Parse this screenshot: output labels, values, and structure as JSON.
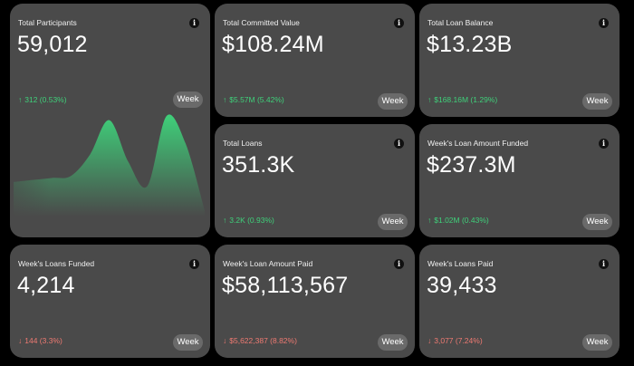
{
  "colors": {
    "background": "#000000",
    "card": "#4a4a4a",
    "up": "#3fd07a",
    "down": "#ef7a72",
    "button": "#6a6a6a"
  },
  "cards": [
    {
      "title": "Total Participants",
      "value": "59,012",
      "delta": "312 (0.53%)",
      "direction": "up",
      "arrow": "↑",
      "period": "Week",
      "info_icon": "i"
    },
    {
      "title": "Total Committed Value",
      "value": "$108.24M",
      "delta": "$5.57M (5.42%)",
      "direction": "up",
      "arrow": "↑",
      "period": "Week",
      "info_icon": "i"
    },
    {
      "title": "Total Loan Balance",
      "value": "$13.23B",
      "delta": "$168.16M (1.29%)",
      "direction": "up",
      "arrow": "↑",
      "period": "Week",
      "info_icon": "i"
    },
    {
      "title": "Total Loans",
      "value": "351.3K",
      "delta": "3.2K (0.93%)",
      "direction": "up",
      "arrow": "↑",
      "period": "Week",
      "info_icon": "i"
    },
    {
      "title": "Week's Loan Amount Funded",
      "value": "$237.3M",
      "delta": "$1.02M (0.43%)",
      "direction": "up",
      "arrow": "↑",
      "period": "Week",
      "info_icon": "i"
    },
    {
      "title": "Week's Loans Funded",
      "value": "4,214",
      "delta": "144 (3.3%)",
      "direction": "down",
      "arrow": "↓",
      "period": "Week",
      "info_icon": "i"
    },
    {
      "title": "Week's Loan Amount Paid",
      "value": "$58,113,567",
      "delta": "$5,622,387 (8.82%)",
      "direction": "down",
      "arrow": "↓",
      "period": "Week",
      "info_icon": "i"
    },
    {
      "title": "Week's Loans Paid",
      "value": "39,433",
      "delta": "3,077 (7.24%)",
      "direction": "down",
      "arrow": "↓",
      "period": "Week",
      "info_icon": "i"
    }
  ],
  "chart_data": {
    "type": "area",
    "x": [
      0,
      1,
      2,
      3,
      4,
      5,
      6,
      7,
      8,
      9,
      10
    ],
    "values": [
      34,
      36,
      38,
      40,
      61,
      95,
      54,
      30,
      99,
      72,
      6
    ],
    "ylim": [
      0,
      100
    ],
    "color": "#3fd07a"
  }
}
